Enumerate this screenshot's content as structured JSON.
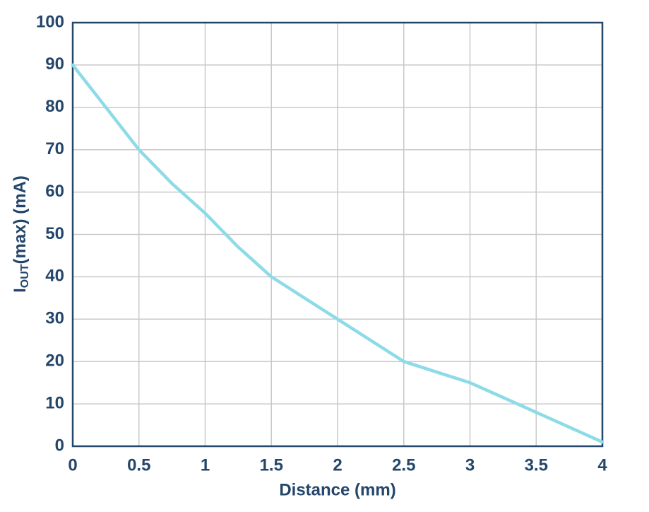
{
  "chart_data": {
    "type": "line",
    "x_label": "Distance (mm)",
    "y_label": {
      "main": "I",
      "subscript": "OUT",
      "rest": "(max) (mA)"
    },
    "x": [
      0,
      0.25,
      0.5,
      0.75,
      1,
      1.25,
      1.5,
      1.75,
      2,
      2.25,
      2.5,
      2.75,
      3,
      3.25,
      3.5,
      3.75,
      4
    ],
    "series": [
      {
        "color": "#8ddbe8",
        "values": [
          90,
          80,
          70,
          62,
          55,
          47,
          40,
          35,
          30,
          25,
          20,
          17.5,
          15,
          11.5,
          8,
          4.5,
          1
        ]
      }
    ],
    "xlim": [
      0,
      4
    ],
    "xticks": [
      0,
      0.5,
      1,
      1.5,
      2,
      2.5,
      3,
      3.5,
      4
    ],
    "ylim": [
      0,
      100
    ],
    "yticks": [
      0,
      10,
      20,
      30,
      40,
      50,
      60,
      70,
      80,
      90,
      100
    ],
    "grid": true
  }
}
